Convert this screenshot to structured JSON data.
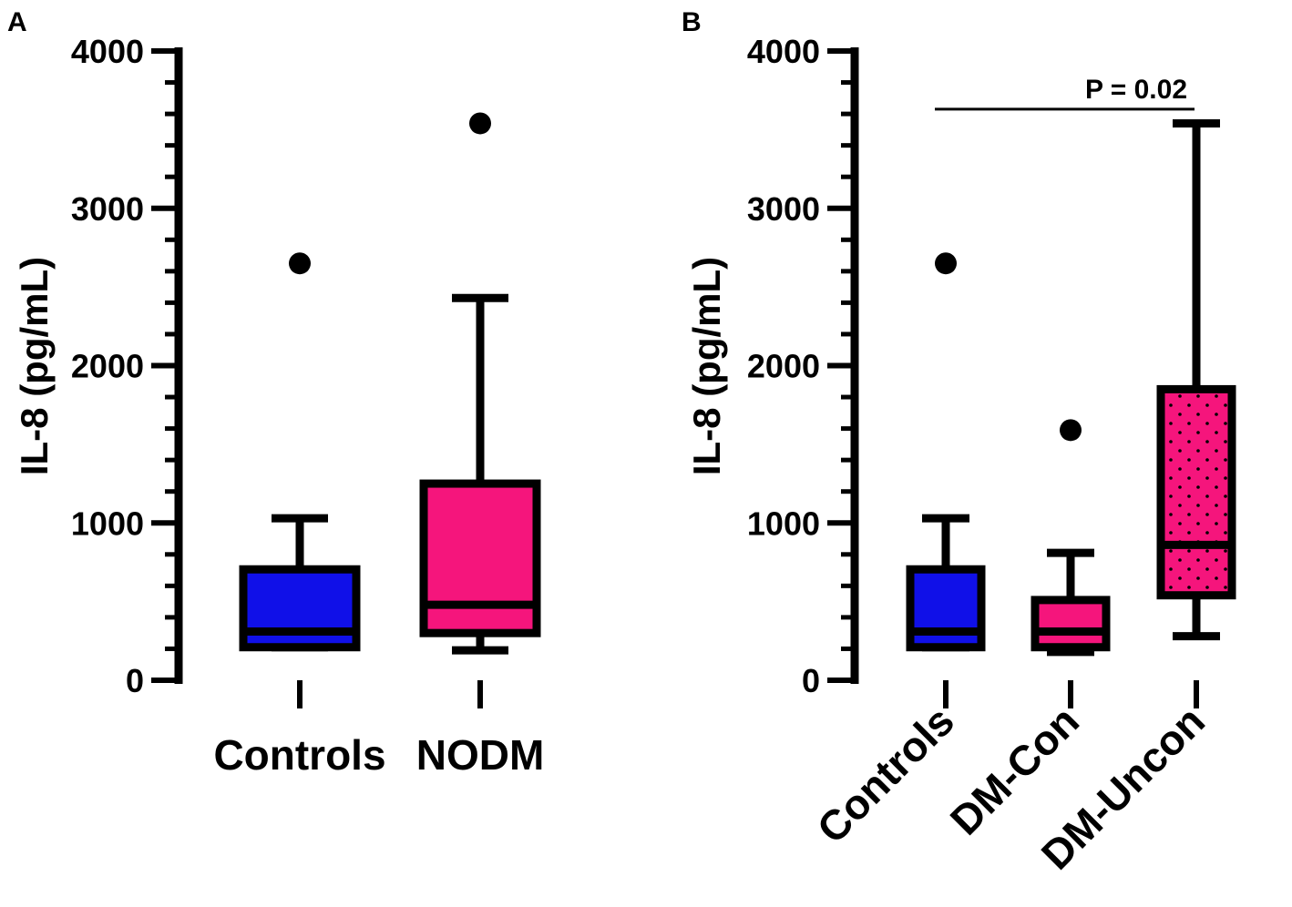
{
  "colors": {
    "blue": "#1010e8",
    "pink": "#f5157c",
    "black": "#000000"
  },
  "chart_data": [
    {
      "type": "box",
      "panel_label": "A",
      "ylabel": "IL-8 (pg/mL)",
      "ylim": [
        0,
        4000
      ],
      "yticks": [
        0,
        1000,
        2000,
        3000,
        4000
      ],
      "ytick_labels": [
        "0",
        "1000",
        "2000",
        "3000",
        "4000"
      ],
      "minor_ticks": true,
      "xlabel_rotation": 0,
      "groups": [
        {
          "label": "Controls",
          "color": "blue",
          "pattern": "solid",
          "whisker_low": 210,
          "q1": 210,
          "median": 310,
          "q3": 705,
          "whisker_high": 1030,
          "outliers": [
            2650
          ]
        },
        {
          "label": "NODM",
          "color": "pink",
          "pattern": "solid",
          "whisker_low": 190,
          "q1": 300,
          "median": 480,
          "q3": 1250,
          "whisker_high": 2430,
          "outliers": [
            3540
          ]
        }
      ],
      "annotations": []
    },
    {
      "type": "box",
      "panel_label": "B",
      "ylabel": "IL-8 (pg/mL)",
      "ylim": [
        0,
        4000
      ],
      "yticks": [
        0,
        1000,
        2000,
        3000,
        4000
      ],
      "ytick_labels": [
        "0",
        "1000",
        "2000",
        "3000",
        "4000"
      ],
      "minor_ticks": true,
      "xlabel_rotation": -45,
      "groups": [
        {
          "label": "Controls",
          "color": "blue",
          "pattern": "solid",
          "whisker_low": 210,
          "q1": 210,
          "median": 310,
          "q3": 705,
          "whisker_high": 1030,
          "outliers": [
            2650
          ]
        },
        {
          "label": "DM-Con",
          "color": "pink",
          "pattern": "solid",
          "whisker_low": 180,
          "q1": 210,
          "median": 310,
          "q3": 510,
          "whisker_high": 810,
          "outliers": [
            1590
          ]
        },
        {
          "label": "DM-Uncon",
          "color": "pink",
          "pattern": "dotted",
          "whisker_low": 280,
          "q1": 540,
          "median": 860,
          "q3": 1850,
          "whisker_high": 3540,
          "outliers": []
        }
      ],
      "annotations": [
        {
          "text": "P = 0.02",
          "from_group": 0,
          "to_group": 2,
          "y": 3630
        }
      ]
    }
  ]
}
